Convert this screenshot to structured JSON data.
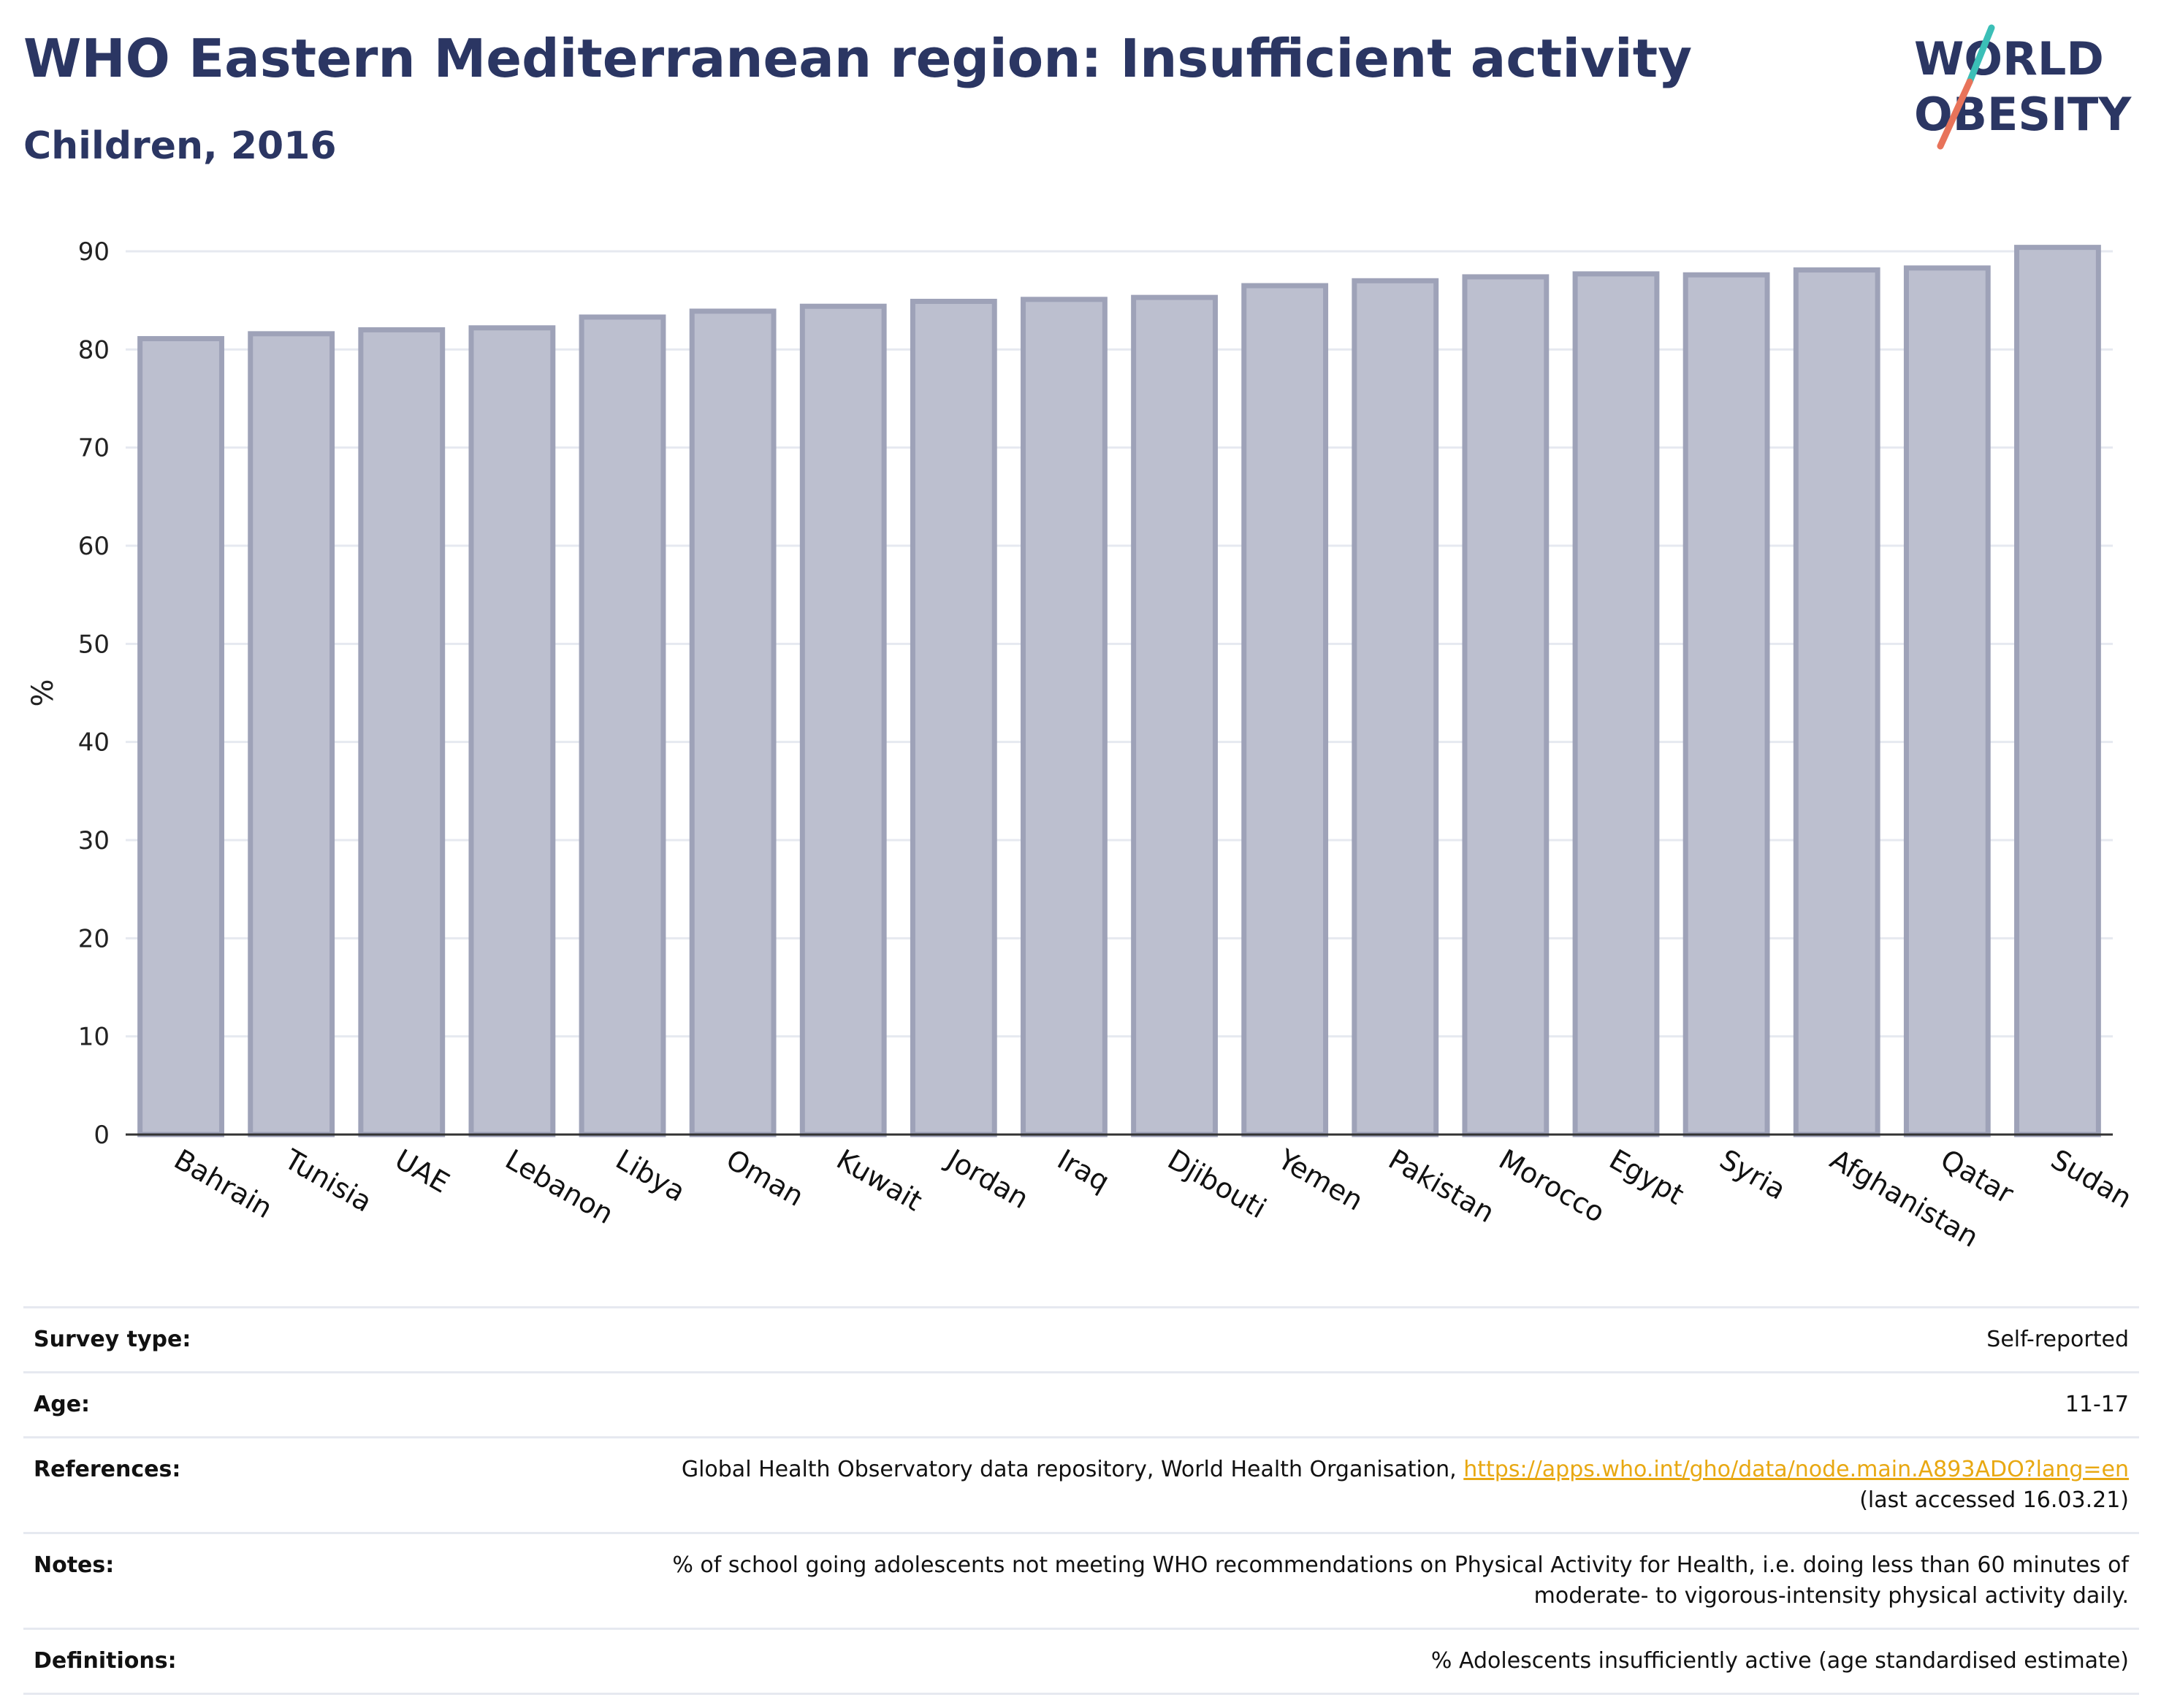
{
  "header": {
    "title": "WHO Eastern Mediterranean region: Insufficient activity",
    "subtitle": "Children, 2016"
  },
  "logo": {
    "line1": "WORLD",
    "line2": "OBESITY",
    "colors": {
      "text": "#2b3663",
      "slash_teal": "#3bbfb7",
      "slash_red": "#e8735a"
    }
  },
  "chart_data": {
    "type": "bar",
    "categories": [
      "Bahrain",
      "Tunisia",
      "UAE",
      "Lebanon",
      "Libya",
      "Oman",
      "Kuwait",
      "Jordan",
      "Iraq",
      "Djibouti",
      "Yemen",
      "Pakistan",
      "Morocco",
      "Egypt",
      "Syria",
      "Afghanistan",
      "Qatar",
      "Sudan"
    ],
    "values": [
      81.1,
      81.6,
      82.0,
      82.2,
      83.3,
      83.9,
      84.4,
      84.9,
      85.1,
      85.3,
      86.5,
      87.0,
      87.4,
      87.7,
      87.6,
      88.1,
      88.3,
      90.4
    ],
    "ylabel": "%",
    "ylim": [
      0,
      90
    ],
    "yticks": [
      0,
      10,
      20,
      30,
      40,
      50,
      60,
      70,
      80,
      90
    ],
    "grid": true,
    "colors": {
      "bar_fill": "#bcbfcf",
      "bar_stroke": "#9ea2b8",
      "axis": "#333333",
      "grid": "#e6e9f0"
    }
  },
  "info_table": {
    "survey_type": {
      "label": "Survey type:",
      "value": "Self-reported"
    },
    "age": {
      "label": "Age:",
      "value": "11-17"
    },
    "references": {
      "label": "References:",
      "text": "Global Health Observatory data repository, World Health Organisation,",
      "link": "https://apps.who.int/gho/data/node.main.A893ADO?lang=en",
      "accessed": "(last accessed 16.03.21)"
    },
    "notes": {
      "label": "Notes:",
      "line1": "% of school going adolescents not meeting WHO recommendations on Physical Activity for Health, i.e. doing less than 60 minutes of",
      "line2": "moderate- to vigorous-intensity physical activity daily."
    },
    "definitions": {
      "label": "Definitions:",
      "value": "% Adolescents insufficiently active (age standardised estimate)"
    }
  }
}
